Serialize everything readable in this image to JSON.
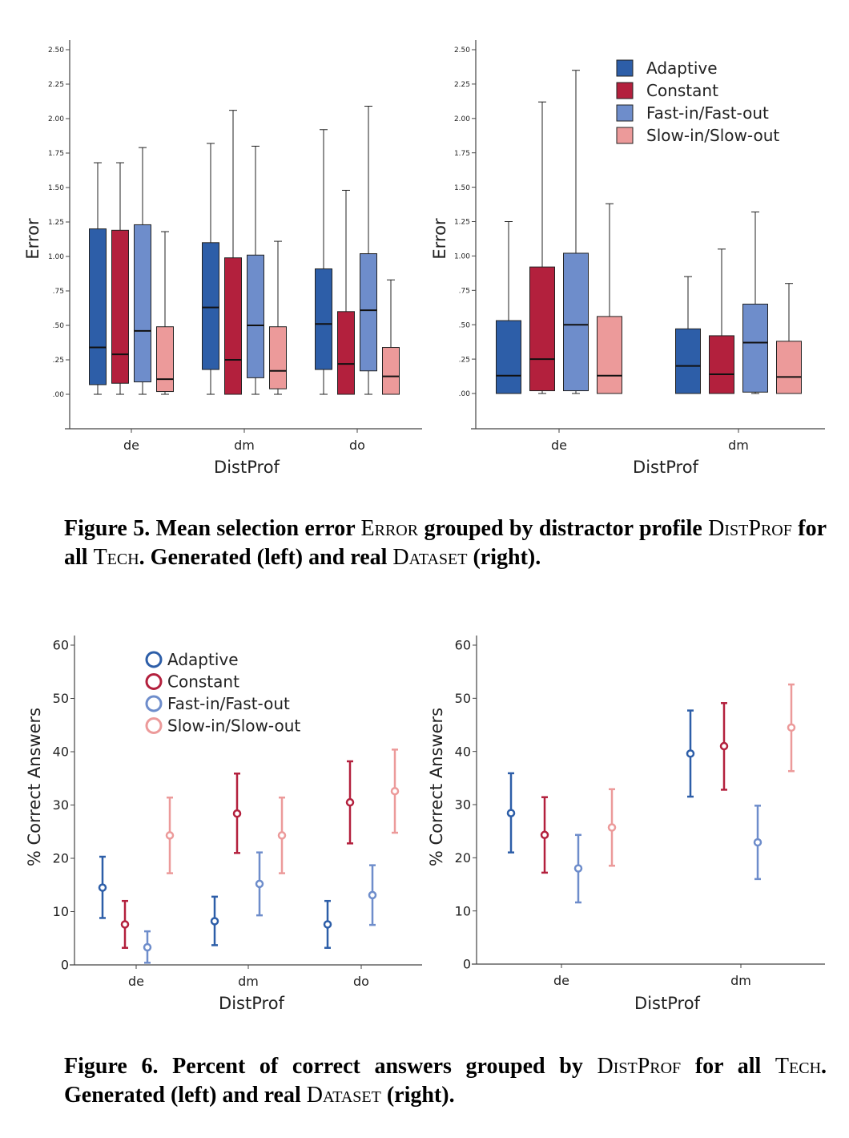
{
  "colors": {
    "Adaptive": "#2d5ea8",
    "Constant": "#b3203d",
    "Fast-in/Fast-out": "#6e8dcb",
    "Slow-in/Slow-out": "#ec9a9a"
  },
  "legend": [
    "Adaptive",
    "Constant",
    "Fast-in/Fast-out",
    "Slow-in/Slow-out"
  ],
  "chart_data": [
    {
      "type": "boxplot",
      "ylabel": "Error",
      "xlabel": "DistProf",
      "ylim": [
        0,
        2.5
      ],
      "yticks": [
        ".00",
        ".25",
        ".50",
        ".75",
        "1.00",
        "1.25",
        "1.50",
        "1.75",
        "2.00",
        "2.25",
        "2.50"
      ],
      "categories": [
        "de",
        "dm",
        "do"
      ],
      "series": [
        {
          "name": "Adaptive",
          "boxes": [
            {
              "min": 0,
              "q1": 0.07,
              "median": 0.34,
              "q3": 1.2,
              "max": 1.68
            },
            {
              "min": 0,
              "q1": 0.18,
              "median": 0.63,
              "q3": 1.1,
              "max": 1.82
            },
            {
              "min": 0,
              "q1": 0.18,
              "median": 0.51,
              "q3": 0.91,
              "max": 1.92
            }
          ]
        },
        {
          "name": "Constant",
          "boxes": [
            {
              "min": 0,
              "q1": 0.08,
              "median": 0.29,
              "q3": 1.19,
              "max": 1.68
            },
            {
              "min": 0,
              "q1": 0,
              "median": 0.25,
              "q3": 0.99,
              "max": 2.06
            },
            {
              "min": 0,
              "q1": 0,
              "median": 0.22,
              "q3": 0.6,
              "max": 1.48
            }
          ]
        },
        {
          "name": "Fast-in/Fast-out",
          "boxes": [
            {
              "min": 0,
              "q1": 0.09,
              "median": 0.46,
              "q3": 1.23,
              "max": 1.79
            },
            {
              "min": 0,
              "q1": 0.12,
              "median": 0.5,
              "q3": 1.01,
              "max": 1.8
            },
            {
              "min": 0,
              "q1": 0.17,
              "median": 0.61,
              "q3": 1.02,
              "max": 2.09
            }
          ]
        },
        {
          "name": "Slow-in/Slow-out",
          "boxes": [
            {
              "min": 0,
              "q1": 0.02,
              "median": 0.11,
              "q3": 0.49,
              "max": 1.18
            },
            {
              "min": 0,
              "q1": 0.04,
              "median": 0.17,
              "q3": 0.49,
              "max": 1.11
            },
            {
              "min": 0,
              "q1": 0,
              "median": 0.13,
              "q3": 0.34,
              "max": 0.83
            }
          ]
        }
      ]
    },
    {
      "type": "boxplot",
      "ylabel": "Error",
      "xlabel": "DistProf",
      "ylim": [
        0,
        2.5
      ],
      "yticks": [
        ".00",
        ".25",
        ".50",
        ".75",
        "1.00",
        "1.25",
        "1.50",
        "1.75",
        "2.00",
        "2.25",
        "2.50"
      ],
      "categories": [
        "de",
        "dm"
      ],
      "series": [
        {
          "name": "Adaptive",
          "boxes": [
            {
              "min": 0,
              "q1": 0,
              "median": 0.13,
              "q3": 0.53,
              "max": 1.25
            },
            {
              "min": 0,
              "q1": 0,
              "median": 0.2,
              "q3": 0.47,
              "max": 0.85
            }
          ]
        },
        {
          "name": "Constant",
          "boxes": [
            {
              "min": 0,
              "q1": 0.02,
              "median": 0.25,
              "q3": 0.92,
              "max": 2.12
            },
            {
              "min": 0,
              "q1": 0,
              "median": 0.14,
              "q3": 0.42,
              "max": 1.05
            }
          ]
        },
        {
          "name": "Fast-in/Fast-out",
          "boxes": [
            {
              "min": 0,
              "q1": 0.02,
              "median": 0.5,
              "q3": 1.02,
              "max": 2.35
            },
            {
              "min": 0,
              "q1": 0.01,
              "median": 0.37,
              "q3": 0.65,
              "max": 1.32
            }
          ]
        },
        {
          "name": "Slow-in/Slow-out",
          "boxes": [
            {
              "min": 0,
              "q1": 0,
              "median": 0.13,
              "q3": 0.56,
              "max": 1.38
            },
            {
              "min": 0,
              "q1": 0,
              "median": 0.12,
              "q3": 0.38,
              "max": 0.8
            }
          ]
        }
      ]
    },
    {
      "type": "errorbar",
      "ylabel": "% Correct Answers",
      "xlabel": "DistProf",
      "ylim": [
        0,
        60
      ],
      "yticks": [
        "0",
        "10",
        "20",
        "30",
        "40",
        "50",
        "60"
      ],
      "categories": [
        "de",
        "dm",
        "do"
      ],
      "series": [
        {
          "name": "Adaptive",
          "points": [
            {
              "value": 14.5,
              "low": 8.8,
              "high": 20.3
            },
            {
              "value": 8.2,
              "low": 3.7,
              "high": 12.8
            },
            {
              "value": 7.6,
              "low": 3.2,
              "high": 12
            }
          ]
        },
        {
          "name": "Constant",
          "points": [
            {
              "value": 7.6,
              "low": 3.2,
              "high": 12
            },
            {
              "value": 28.4,
              "low": 21,
              "high": 35.9
            },
            {
              "value": 30.5,
              "low": 22.8,
              "high": 38.2
            }
          ]
        },
        {
          "name": "Fast-in/Fast-out",
          "points": [
            {
              "value": 3.3,
              "low": 0.4,
              "high": 6.3
            },
            {
              "value": 15.2,
              "low": 9.3,
              "high": 21.1
            },
            {
              "value": 13.1,
              "low": 7.5,
              "high": 18.7
            }
          ]
        },
        {
          "name": "Slow-in/Slow-out",
          "points": [
            {
              "value": 24.3,
              "low": 17.2,
              "high": 31.4
            },
            {
              "value": 24.3,
              "low": 17.2,
              "high": 31.4
            },
            {
              "value": 32.6,
              "low": 24.8,
              "high": 40.4
            }
          ]
        }
      ]
    },
    {
      "type": "errorbar",
      "ylabel": "% Correct Answers",
      "xlabel": "DistProf",
      "ylim": [
        0,
        60
      ],
      "yticks": [
        "0",
        "10",
        "20",
        "30",
        "40",
        "50",
        "60"
      ],
      "categories": [
        "de",
        "dm"
      ],
      "series": [
        {
          "name": "Adaptive",
          "points": [
            {
              "value": 28.4,
              "low": 21,
              "high": 35.9
            },
            {
              "value": 39.6,
              "low": 31.5,
              "high": 47.7
            }
          ]
        },
        {
          "name": "Constant",
          "points": [
            {
              "value": 24.3,
              "low": 17.2,
              "high": 31.4
            },
            {
              "value": 41,
              "low": 32.8,
              "high": 49.1
            }
          ]
        },
        {
          "name": "Fast-in/Fast-out",
          "points": [
            {
              "value": 18,
              "low": 11.6,
              "high": 24.3
            },
            {
              "value": 22.9,
              "low": 16,
              "high": 29.8
            }
          ]
        },
        {
          "name": "Slow-in/Slow-out",
          "points": [
            {
              "value": 25.7,
              "low": 18.5,
              "high": 32.9
            },
            {
              "value": 44.5,
              "low": 36.3,
              "high": 52.6
            }
          ]
        }
      ]
    }
  ],
  "captions": {
    "fig5": {
      "label": "Figure 5.",
      "t1": "Mean selection error ",
      "t2": "Error",
      "t3": " grouped by distractor profile ",
      "t4": "DistProf",
      "t5": " for all ",
      "t6": "Tech",
      "t7": ". Generated (left) and real ",
      "t8": "Dataset",
      "t9": " (right)."
    },
    "fig6": {
      "label": "Figure 6.",
      "t1": "Percent of correct answers grouped by ",
      "t2": "DistProf",
      "t3": " for all ",
      "t4": "Tech",
      "t5": ". Generated (left) and real ",
      "t6": "Dataset",
      "t7": " (right)."
    }
  }
}
